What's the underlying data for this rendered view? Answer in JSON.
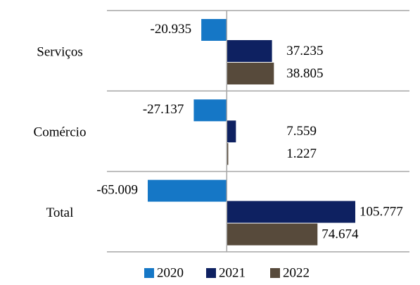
{
  "chart_data": {
    "type": "hbar",
    "categories": [
      "Serviços",
      "Comércio",
      "Total"
    ],
    "series": [
      {
        "name": "2020",
        "color": "#1577c6",
        "values": [
          -20935,
          -27137,
          -65009
        ],
        "value_labels": [
          "-20.935",
          "-27.137",
          "-65.009"
        ]
      },
      {
        "name": "2021",
        "color": "#0e2161",
        "values": [
          37235,
          7559,
          105777
        ],
        "value_labels": [
          "37.235",
          "7.559",
          "105.777"
        ]
      },
      {
        "name": "2022",
        "color": "#574a3b",
        "values": [
          38805,
          1227,
          74674
        ],
        "value_labels": [
          "38.805",
          "1.227",
          "74.674"
        ]
      }
    ],
    "legend": "bottom"
  }
}
